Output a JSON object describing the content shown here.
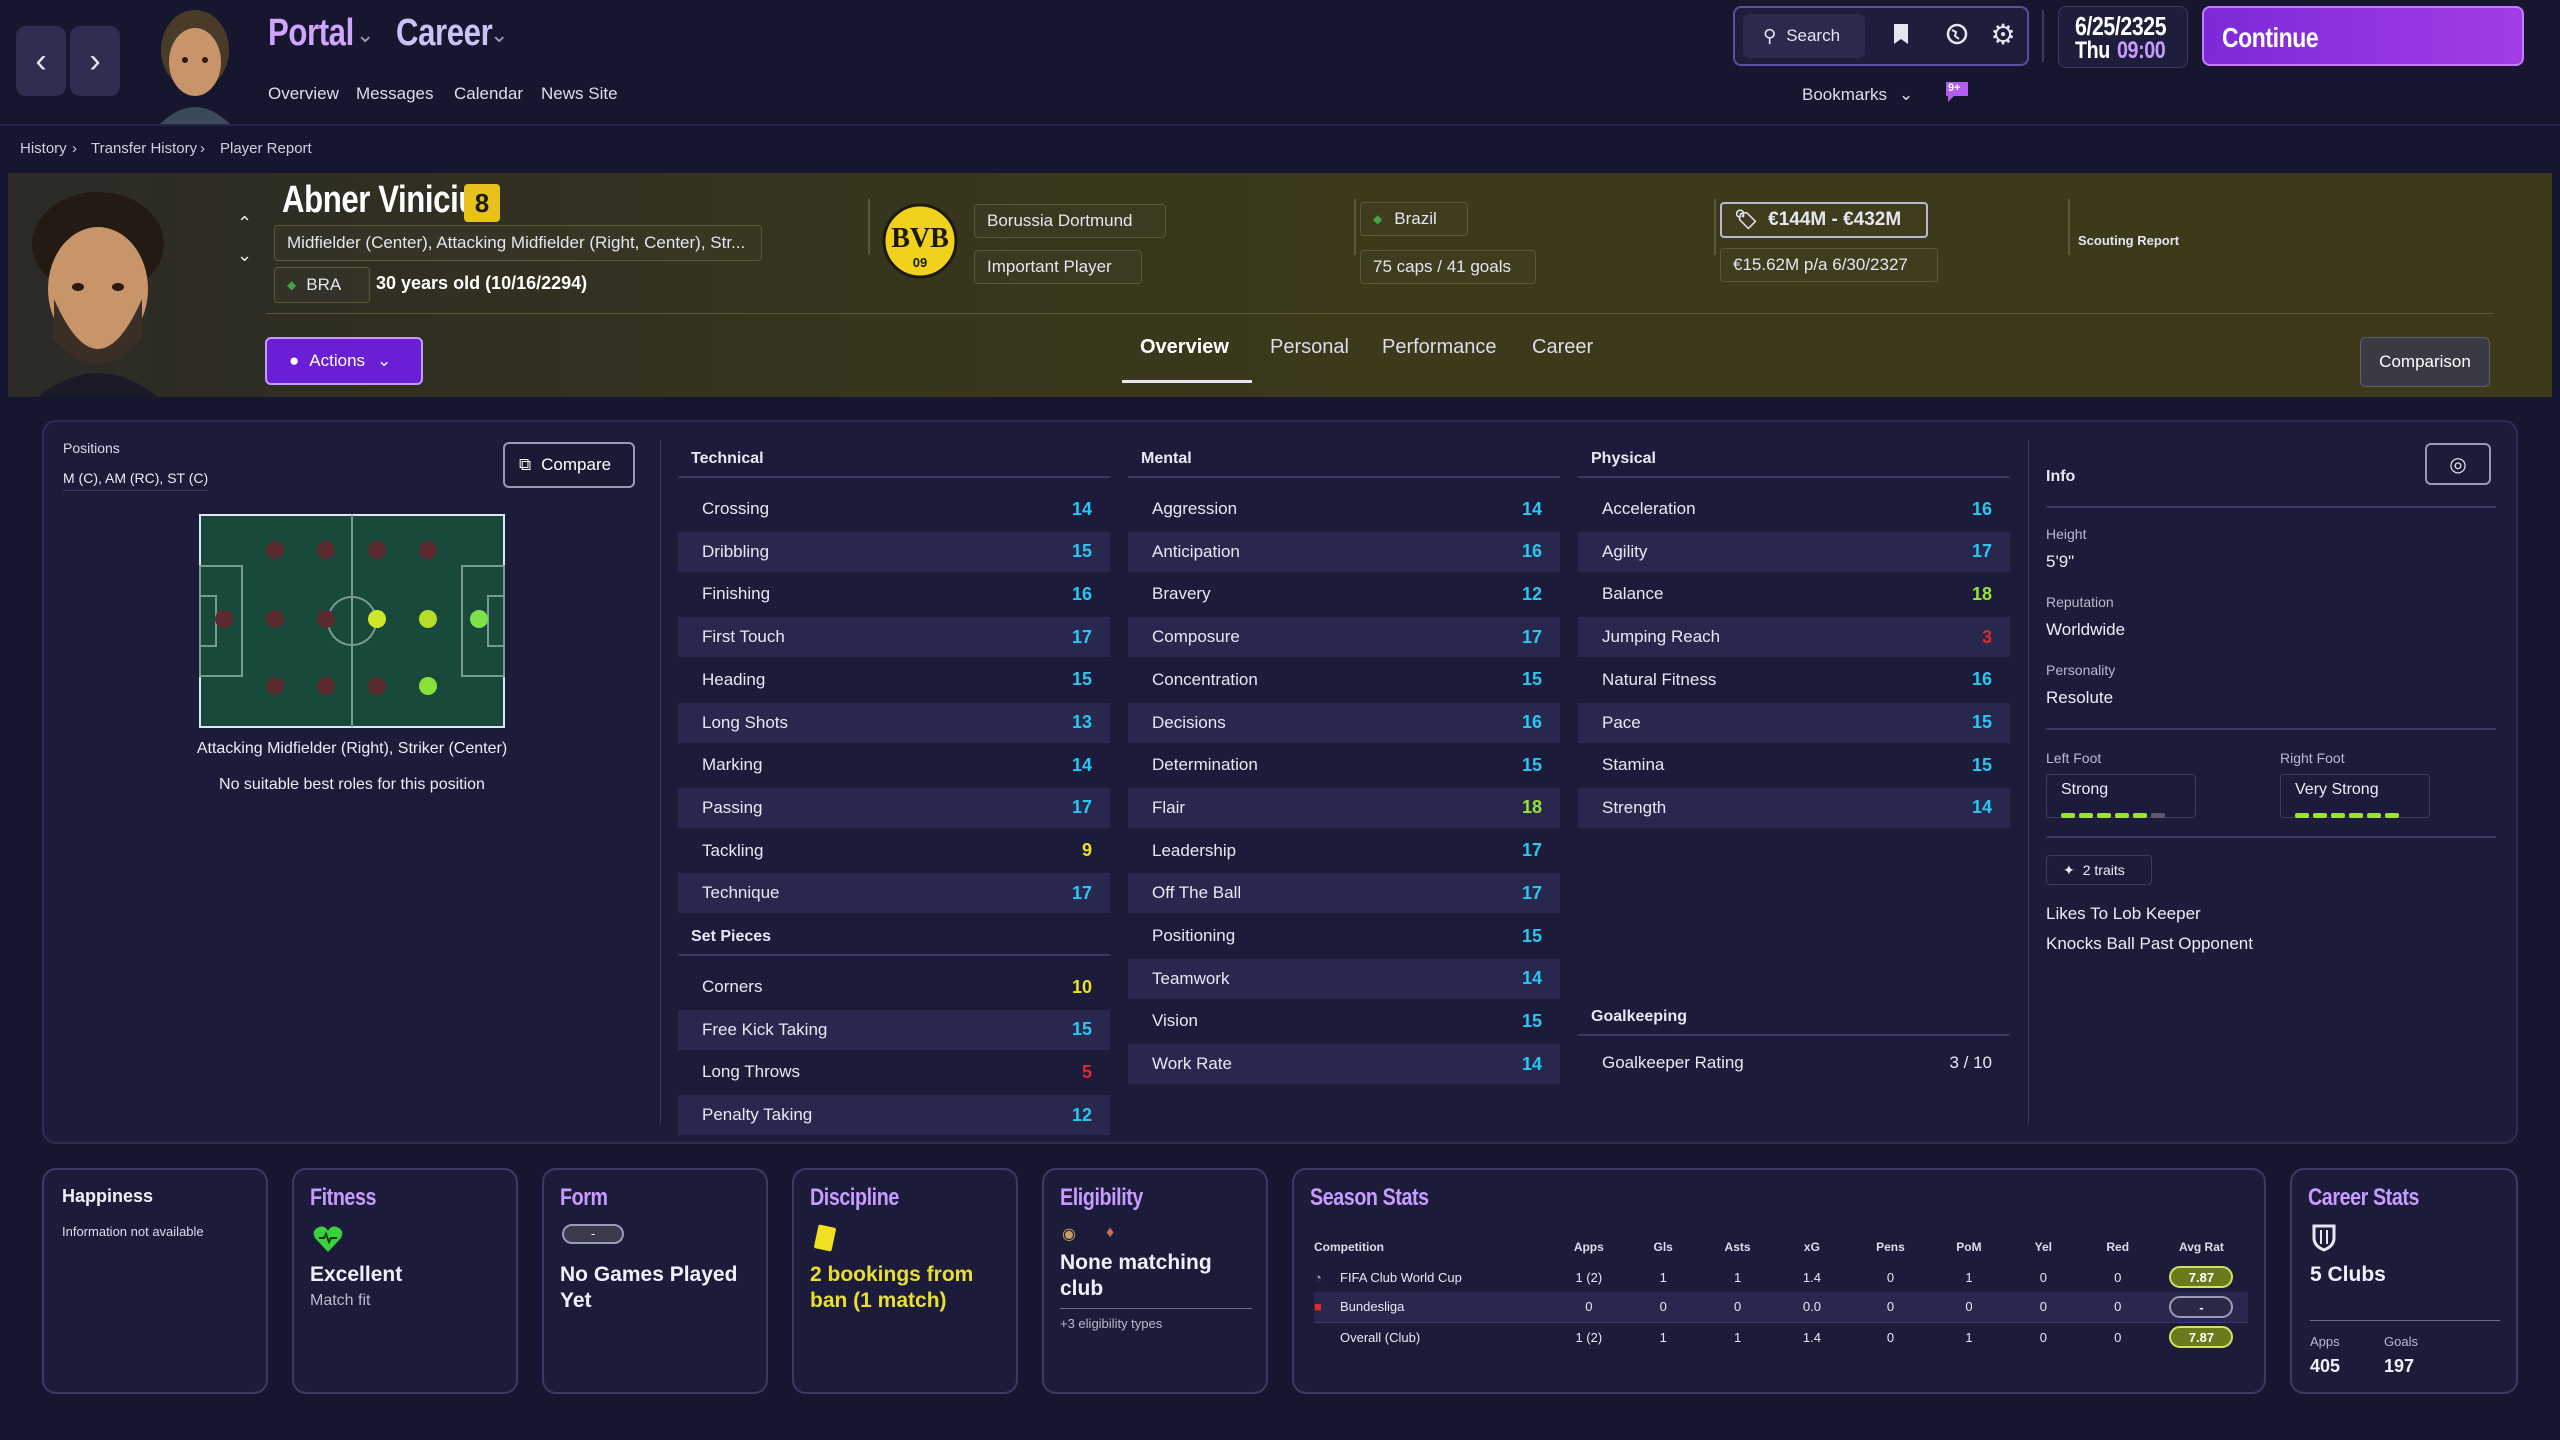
{
  "topbar": {
    "portal": "Portal",
    "career": "Career",
    "submenu": [
      "Overview",
      "Messages",
      "Calendar",
      "News Site"
    ],
    "search": "Search",
    "bookmarks": "Bookmarks",
    "notif_badge": "9+",
    "date": "6/25/2325",
    "day": "Thu",
    "time": "09:00",
    "continue": "Continue"
  },
  "breadcrumb": [
    "History",
    "Transfer History",
    "Player Report"
  ],
  "player": {
    "name": "Abner Vinicius",
    "number": "8",
    "positions_text": "Midfielder (Center), Attacking Midfielder (Right, Center), Str...",
    "nation_code": "BRA",
    "age": "30 years old (10/16/2294)",
    "club": "Borussia Dortmund",
    "club_badge": "BVB",
    "club_badge_year": "09",
    "squad_status": "Important Player",
    "country": "Brazil",
    "caps": "75 caps / 41 goals",
    "value": "€144M - €432M",
    "wage": "€15.62M p/a 6/30/2327",
    "scouting": "Scouting Report",
    "actions": "Actions",
    "comparison": "Comparison",
    "tabs": [
      "Overview",
      "Personal",
      "Performance",
      "Career"
    ]
  },
  "positions": {
    "label": "Positions",
    "value": "M (C), AM (RC), ST (C)",
    "compare": "Compare",
    "role_text": "Attacking Midfielder (Right), Striker (Center)",
    "best_roles": "No suitable best roles for this position"
  },
  "technical": {
    "title": "Technical",
    "rows": [
      {
        "name": "Crossing",
        "value": "14"
      },
      {
        "name": "Dribbling",
        "value": "15"
      },
      {
        "name": "Finishing",
        "value": "16"
      },
      {
        "name": "First Touch",
        "value": "17"
      },
      {
        "name": "Heading",
        "value": "15"
      },
      {
        "name": "Long Shots",
        "value": "13"
      },
      {
        "name": "Marking",
        "value": "14"
      },
      {
        "name": "Passing",
        "value": "17"
      },
      {
        "name": "Tackling",
        "value": "9"
      },
      {
        "name": "Technique",
        "value": "17"
      }
    ]
  },
  "setpieces": {
    "title": "Set Pieces",
    "rows": [
      {
        "name": "Corners",
        "value": "10"
      },
      {
        "name": "Free Kick Taking",
        "value": "15"
      },
      {
        "name": "Long Throws",
        "value": "5"
      },
      {
        "name": "Penalty Taking",
        "value": "12"
      }
    ]
  },
  "mental": {
    "title": "Mental",
    "rows": [
      {
        "name": "Aggression",
        "value": "14"
      },
      {
        "name": "Anticipation",
        "value": "16"
      },
      {
        "name": "Bravery",
        "value": "12"
      },
      {
        "name": "Composure",
        "value": "17"
      },
      {
        "name": "Concentration",
        "value": "15"
      },
      {
        "name": "Decisions",
        "value": "16"
      },
      {
        "name": "Determination",
        "value": "15"
      },
      {
        "name": "Flair",
        "value": "18"
      },
      {
        "name": "Leadership",
        "value": "17"
      },
      {
        "name": "Off The Ball",
        "value": "17"
      },
      {
        "name": "Positioning",
        "value": "15"
      },
      {
        "name": "Teamwork",
        "value": "14"
      },
      {
        "name": "Vision",
        "value": "15"
      },
      {
        "name": "Work Rate",
        "value": "14"
      }
    ]
  },
  "physical": {
    "title": "Physical",
    "rows": [
      {
        "name": "Acceleration",
        "value": "16"
      },
      {
        "name": "Agility",
        "value": "17"
      },
      {
        "name": "Balance",
        "value": "18"
      },
      {
        "name": "Jumping Reach",
        "value": "3"
      },
      {
        "name": "Natural Fitness",
        "value": "16"
      },
      {
        "name": "Pace",
        "value": "15"
      },
      {
        "name": "Stamina",
        "value": "15"
      },
      {
        "name": "Strength",
        "value": "14"
      }
    ]
  },
  "goalkeeping": {
    "title": "Goalkeeping",
    "label": "Goalkeeper Rating",
    "value": "3 / 10"
  },
  "info": {
    "title": "Info",
    "height_label": "Height",
    "height": "5'9\"",
    "reputation_label": "Reputation",
    "reputation": "Worldwide",
    "personality_label": "Personality",
    "personality": "Resolute",
    "left_foot_label": "Left Foot",
    "left_foot": "Strong",
    "right_foot_label": "Right Foot",
    "right_foot": "Very Strong",
    "traits_badge": "2 traits",
    "traits": [
      "Likes To Lob Keeper",
      "Knocks Ball Past Opponent"
    ]
  },
  "cards": {
    "happiness": {
      "title": "Happiness",
      "text": "Information not available"
    },
    "fitness": {
      "title": "Fitness",
      "value": "Excellent",
      "sub": "Match fit"
    },
    "form": {
      "title": "Form",
      "badge": "-",
      "value": "No Games Played Yet"
    },
    "discipline": {
      "title": "Discipline",
      "value": "2 bookings from ban (1 match)"
    },
    "eligibility": {
      "title": "Eligibility",
      "value": "None matching club",
      "sub": "+3 eligibility types"
    },
    "season": {
      "title": "Season Stats",
      "headers": [
        "Competition",
        "Apps",
        "Gls",
        "Asts",
        "xG",
        "Pens",
        "PoM",
        "Yel",
        "Red",
        "Avg Rat"
      ],
      "rows": [
        {
          "comp": "FIFA Club World Cup",
          "apps": "1 (2)",
          "gls": "1",
          "asts": "1",
          "xg": "1.4",
          "pens": "0",
          "pom": "1",
          "yel": "0",
          "red": "0",
          "rat": "7.87"
        },
        {
          "comp": "Bundesliga",
          "apps": "0",
          "gls": "0",
          "asts": "0",
          "xg": "0.0",
          "pens": "0",
          "pom": "0",
          "yel": "0",
          "red": "0",
          "rat": "-"
        },
        {
          "comp": "Overall (Club)",
          "apps": "1 (2)",
          "gls": "1",
          "asts": "1",
          "xg": "1.4",
          "pens": "0",
          "pom": "1",
          "yel": "0",
          "red": "0",
          "rat": "7.87"
        }
      ]
    },
    "career": {
      "title": "Career Stats",
      "clubs": "5 Clubs",
      "apps_label": "Apps",
      "apps": "405",
      "goals_label": "Goals",
      "goals": "197"
    }
  },
  "colors": {
    "accent": "#a33ce6",
    "green": "#9be236",
    "cyan": "#29c6f0",
    "yellow": "#e8e02a",
    "red": "#e02a2a",
    "gold": "#e8c21a"
  }
}
